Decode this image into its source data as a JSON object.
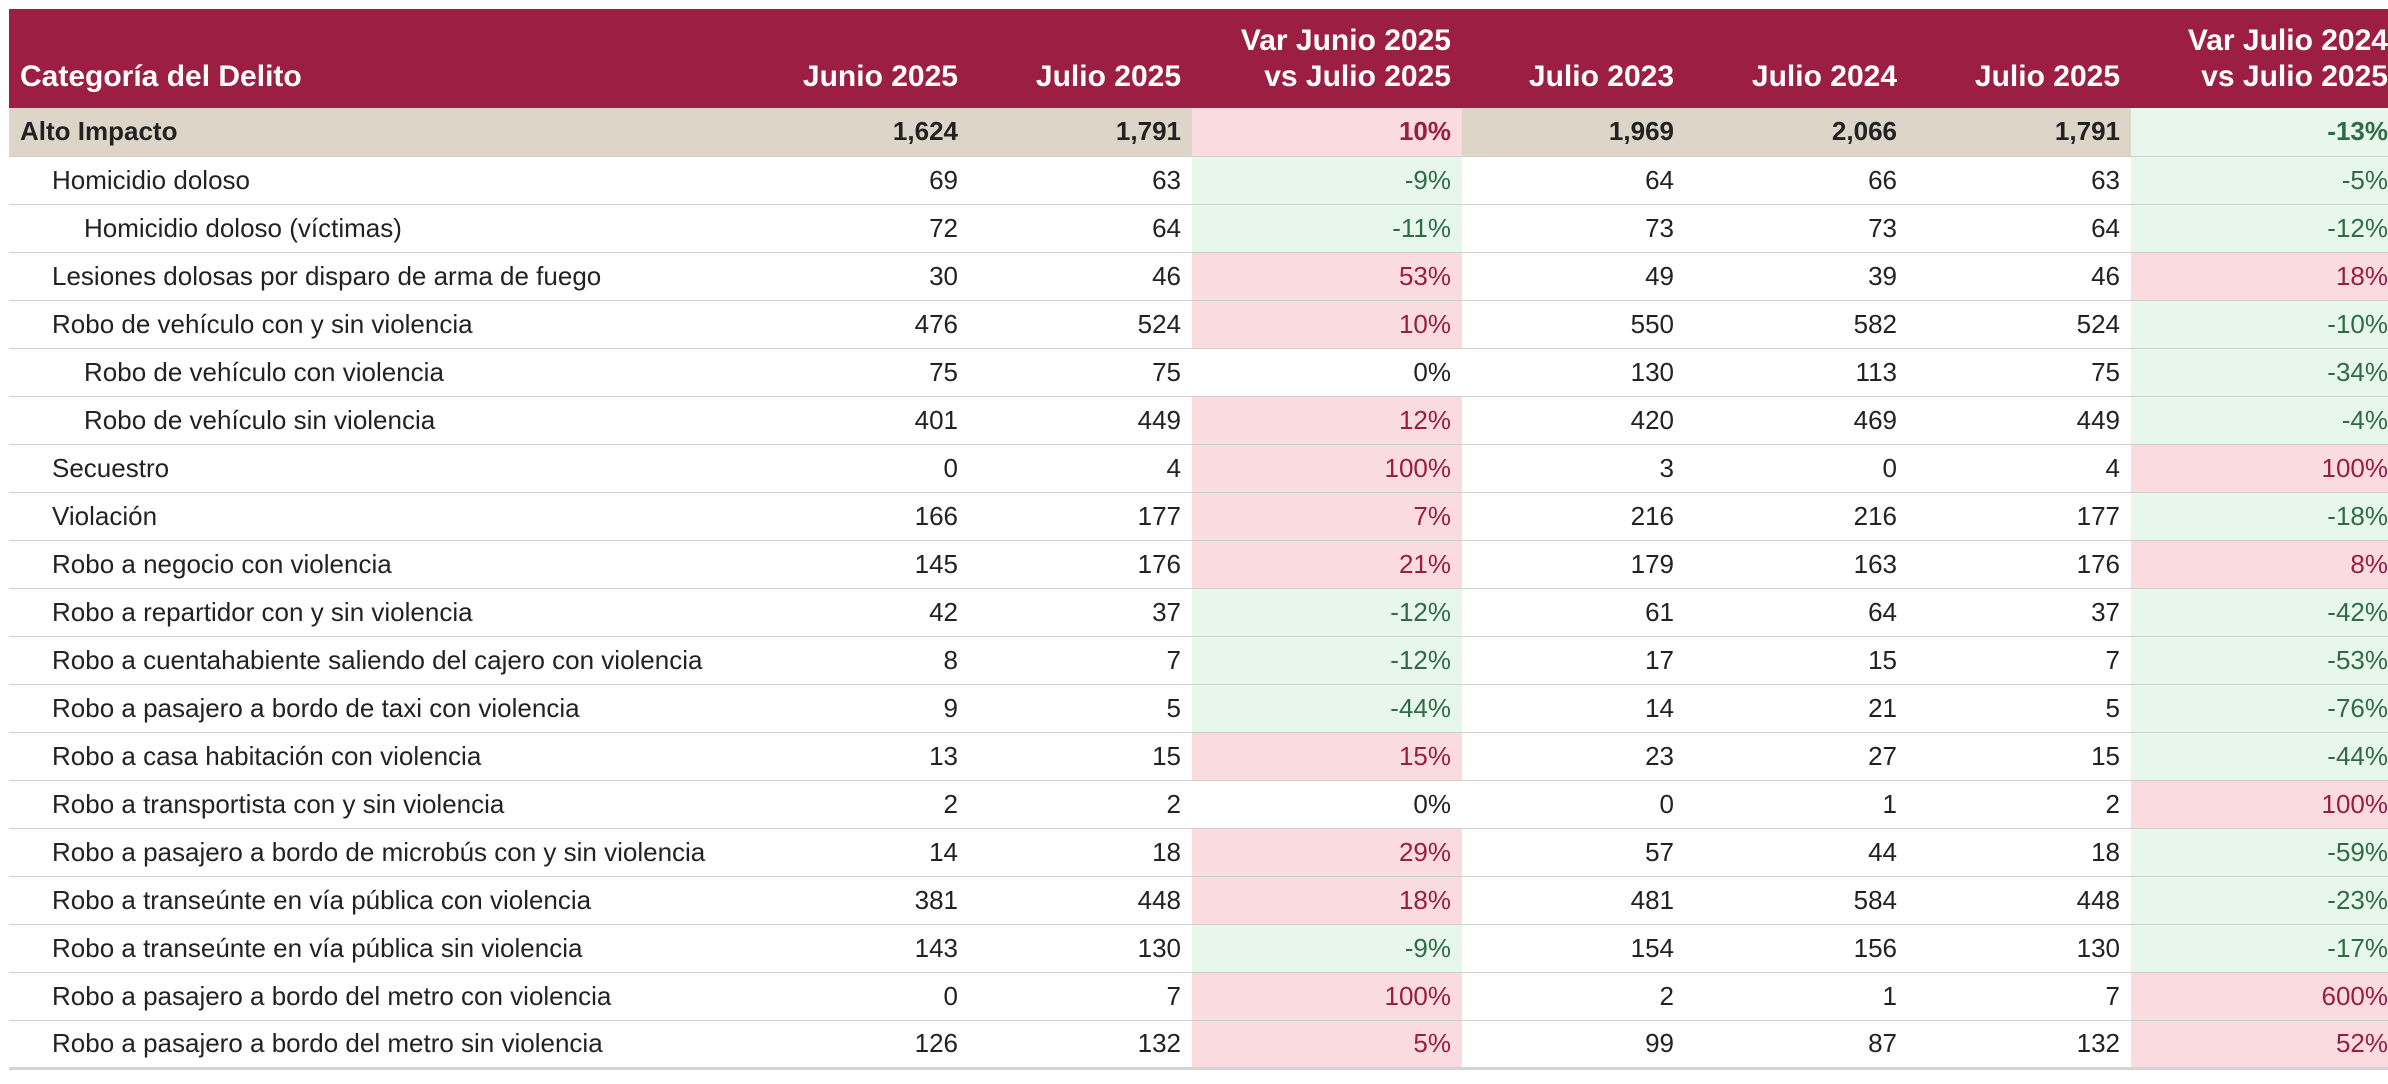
{
  "table": {
    "headers": {
      "category": "Categoría del Delito",
      "junio2025": "Junio 2025",
      "julio2025a": "Julio 2025",
      "var1_line1": "Var Junio 2025",
      "var1_line2": "vs Julio 2025",
      "julio2023": "Julio 2023",
      "julio2024": "Julio 2024",
      "julio2025b": "Julio 2025",
      "var2_line1": "Var Julio 2024",
      "var2_line2": "vs Julio 2025"
    },
    "rows": [
      {
        "level": 0,
        "cat": "Alto Impacto",
        "jun25": "1,624",
        "jul25": "1,791",
        "var1": "10%",
        "var1_dir": "up",
        "jul23": "1,969",
        "jul24": "2,066",
        "jul25b": "1,791",
        "var2": "-13%",
        "var2_dir": "down"
      },
      {
        "level": 1,
        "cat": "Homicidio doloso",
        "jun25": "69",
        "jul25": "63",
        "var1": "-9%",
        "var1_dir": "down",
        "jul23": "64",
        "jul24": "66",
        "jul25b": "63",
        "var2": "-5%",
        "var2_dir": "down"
      },
      {
        "level": 2,
        "cat": "Homicidio doloso (víctimas)",
        "jun25": "72",
        "jul25": "64",
        "var1": "-11%",
        "var1_dir": "down",
        "jul23": "73",
        "jul24": "73",
        "jul25b": "64",
        "var2": "-12%",
        "var2_dir": "down"
      },
      {
        "level": 1,
        "cat": "Lesiones dolosas por disparo de arma de fuego",
        "jun25": "30",
        "jul25": "46",
        "var1": "53%",
        "var1_dir": "up",
        "jul23": "49",
        "jul24": "39",
        "jul25b": "46",
        "var2": "18%",
        "var2_dir": "up"
      },
      {
        "level": 1,
        "cat": "Robo de vehículo con y sin violencia",
        "jun25": "476",
        "jul25": "524",
        "var1": "10%",
        "var1_dir": "up",
        "jul23": "550",
        "jul24": "582",
        "jul25b": "524",
        "var2": "-10%",
        "var2_dir": "down"
      },
      {
        "level": 2,
        "cat": "Robo de vehículo con violencia",
        "jun25": "75",
        "jul25": "75",
        "var1": "0%",
        "var1_dir": "flat",
        "jul23": "130",
        "jul24": "113",
        "jul25b": "75",
        "var2": "-34%",
        "var2_dir": "down"
      },
      {
        "level": 2,
        "cat": "Robo de vehículo sin violencia",
        "jun25": "401",
        "jul25": "449",
        "var1": "12%",
        "var1_dir": "up",
        "jul23": "420",
        "jul24": "469",
        "jul25b": "449",
        "var2": "-4%",
        "var2_dir": "down"
      },
      {
        "level": 1,
        "cat": "Secuestro",
        "jun25": "0",
        "jul25": "4",
        "var1": "100%",
        "var1_dir": "up",
        "jul23": "3",
        "jul24": "0",
        "jul25b": "4",
        "var2": "100%",
        "var2_dir": "up"
      },
      {
        "level": 1,
        "cat": "Violación",
        "jun25": "166",
        "jul25": "177",
        "var1": "7%",
        "var1_dir": "up",
        "jul23": "216",
        "jul24": "216",
        "jul25b": "177",
        "var2": "-18%",
        "var2_dir": "down"
      },
      {
        "level": 1,
        "cat": "Robo a negocio con violencia",
        "jun25": "145",
        "jul25": "176",
        "var1": "21%",
        "var1_dir": "up",
        "jul23": "179",
        "jul24": "163",
        "jul25b": "176",
        "var2": "8%",
        "var2_dir": "up"
      },
      {
        "level": 1,
        "cat": "Robo a repartidor con y sin violencia",
        "jun25": "42",
        "jul25": "37",
        "var1": "-12%",
        "var1_dir": "down",
        "jul23": "61",
        "jul24": "64",
        "jul25b": "37",
        "var2": "-42%",
        "var2_dir": "down"
      },
      {
        "level": 1,
        "cat": "Robo a cuentahabiente saliendo del cajero con violencia",
        "jun25": "8",
        "jul25": "7",
        "var1": "-12%",
        "var1_dir": "down",
        "jul23": "17",
        "jul24": "15",
        "jul25b": "7",
        "var2": "-53%",
        "var2_dir": "down"
      },
      {
        "level": 1,
        "cat": "Robo a pasajero a bordo de taxi con violencia",
        "jun25": "9",
        "jul25": "5",
        "var1": "-44%",
        "var1_dir": "down",
        "jul23": "14",
        "jul24": "21",
        "jul25b": "5",
        "var2": "-76%",
        "var2_dir": "down"
      },
      {
        "level": 1,
        "cat": "Robo a casa habitación con violencia",
        "jun25": "13",
        "jul25": "15",
        "var1": "15%",
        "var1_dir": "up",
        "jul23": "23",
        "jul24": "27",
        "jul25b": "15",
        "var2": "-44%",
        "var2_dir": "down"
      },
      {
        "level": 1,
        "cat": "Robo a transportista con y sin violencia",
        "jun25": "2",
        "jul25": "2",
        "var1": "0%",
        "var1_dir": "flat",
        "jul23": "0",
        "jul24": "1",
        "jul25b": "2",
        "var2": "100%",
        "var2_dir": "up"
      },
      {
        "level": 1,
        "cat": "Robo a pasajero a bordo de microbús con y sin violencia",
        "jun25": "14",
        "jul25": "18",
        "var1": "29%",
        "var1_dir": "up",
        "jul23": "57",
        "jul24": "44",
        "jul25b": "18",
        "var2": "-59%",
        "var2_dir": "down"
      },
      {
        "level": 1,
        "cat": "Robo a transeúnte en vía pública con violencia",
        "jun25": "381",
        "jul25": "448",
        "var1": "18%",
        "var1_dir": "up",
        "jul23": "481",
        "jul24": "584",
        "jul25b": "448",
        "var2": "-23%",
        "var2_dir": "down"
      },
      {
        "level": 1,
        "cat": "Robo a transeúnte en vía pública sin violencia",
        "jun25": "143",
        "jul25": "130",
        "var1": "-9%",
        "var1_dir": "down",
        "jul23": "154",
        "jul24": "156",
        "jul25b": "130",
        "var2": "-17%",
        "var2_dir": "down"
      },
      {
        "level": 1,
        "cat": "Robo a pasajero a bordo del metro con violencia",
        "jun25": "0",
        "jul25": "7",
        "var1": "100%",
        "var1_dir": "up",
        "jul23": "2",
        "jul24": "1",
        "jul25b": "7",
        "var2": "600%",
        "var2_dir": "up"
      },
      {
        "level": 1,
        "cat": "Robo a pasajero a bordo del metro sin violencia",
        "jun25": "126",
        "jul25": "132",
        "var1": "5%",
        "var1_dir": "up",
        "jul23": "99",
        "jul24": "87",
        "jul25b": "132",
        "var2": "52%",
        "var2_dir": "up"
      }
    ]
  }
}
